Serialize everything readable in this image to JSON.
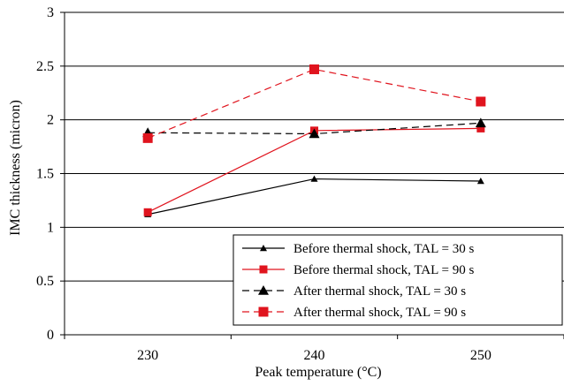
{
  "chart_data": {
    "type": "line",
    "title": "",
    "xlabel": "Peak temperature (°C)",
    "ylabel": "IMC thickness (micron)",
    "categories": [
      "230",
      "240",
      "250"
    ],
    "ylim": [
      0,
      3
    ],
    "yticks": [
      "0",
      "0.5",
      "1",
      "1.5",
      "2",
      "2.5",
      "3"
    ],
    "grid": "horizontal",
    "legend_position": "bottom-right",
    "series": [
      {
        "name": "Before thermal shock, TAL = 30 s",
        "values": [
          1.12,
          1.45,
          1.43
        ],
        "color": "#000000",
        "dash": "solid",
        "marker": "triangle-small"
      },
      {
        "name": "Before thermal shock, TAL = 90 s",
        "values": [
          1.14,
          1.9,
          1.92
        ],
        "color": "#e0141e",
        "dash": "solid",
        "marker": "square"
      },
      {
        "name": "After thermal shock, TAL = 30 s",
        "values": [
          1.88,
          1.87,
          1.97
        ],
        "color": "#000000",
        "dash": "dashed",
        "marker": "triangle"
      },
      {
        "name": "After thermal shock, TAL = 90 s",
        "values": [
          1.83,
          2.47,
          2.17
        ],
        "color": "#e0141e",
        "dash": "dashed",
        "marker": "square-large"
      }
    ]
  }
}
